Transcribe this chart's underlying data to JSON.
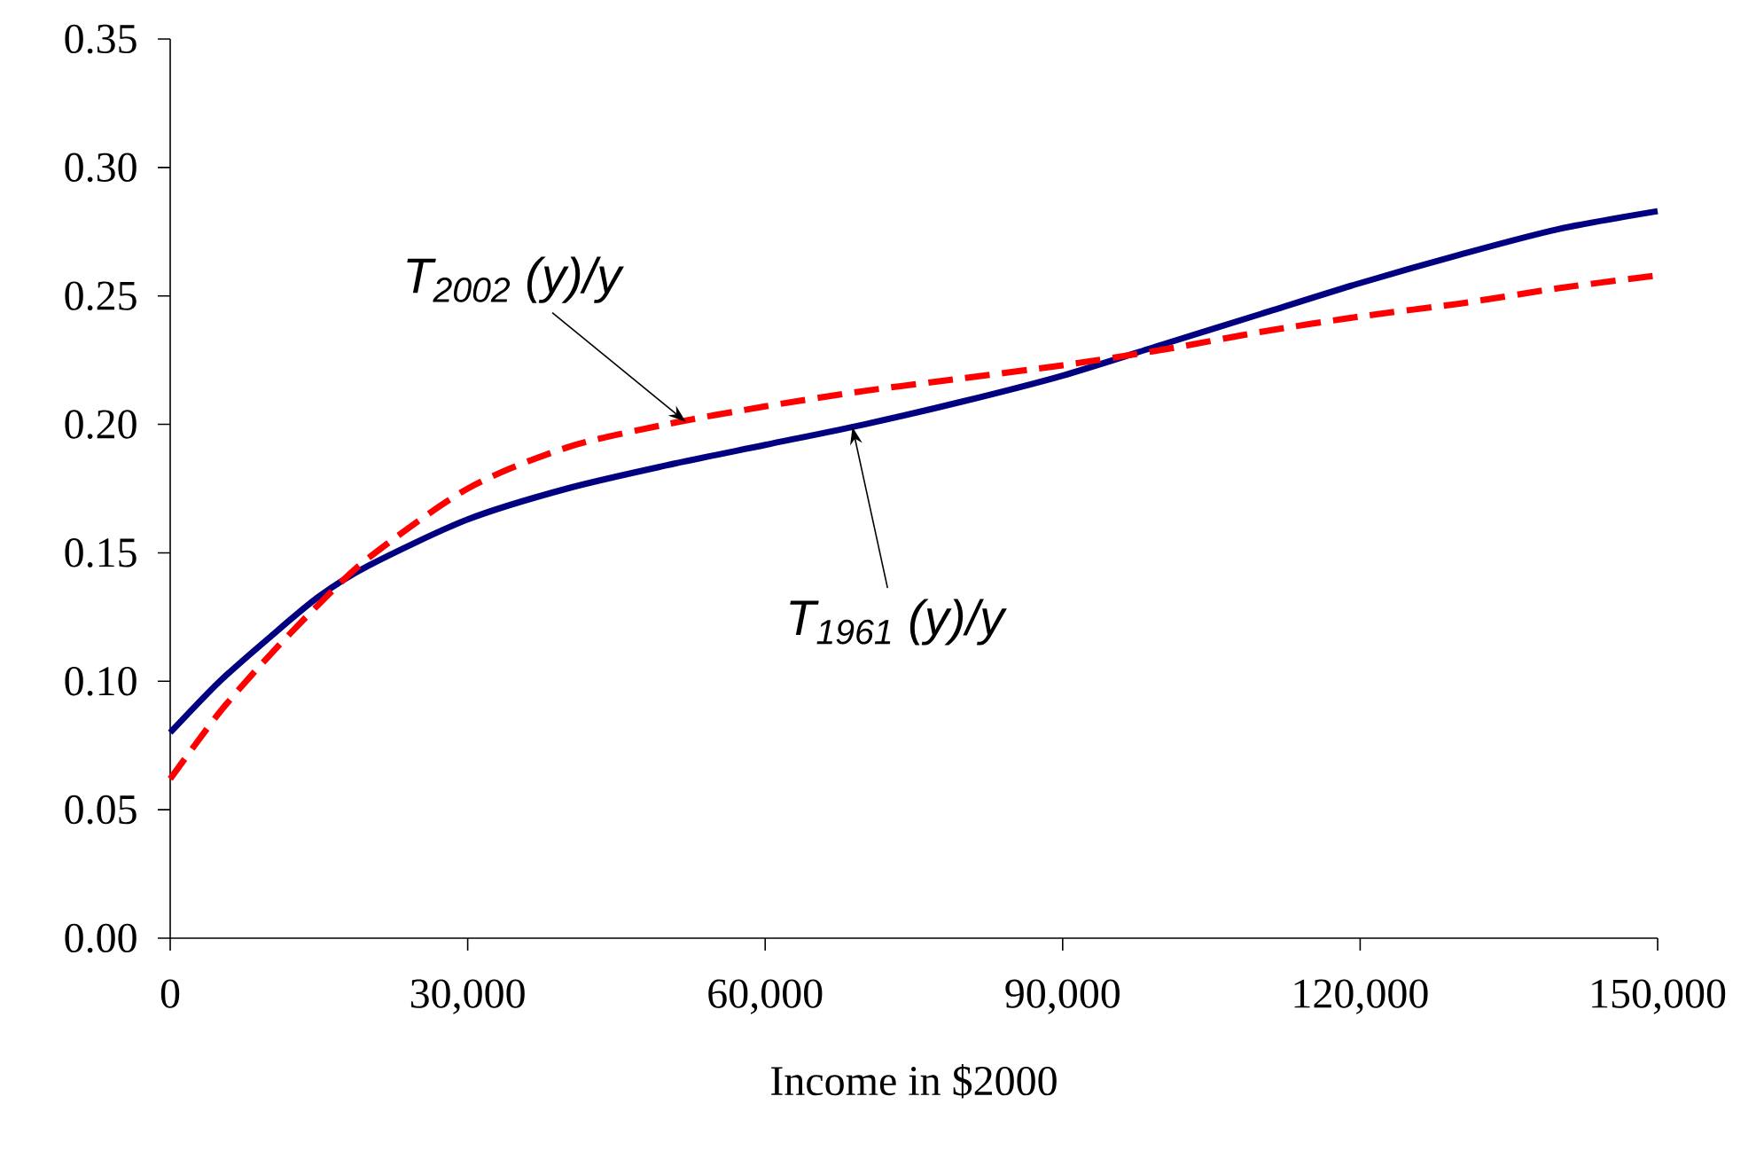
{
  "chart_data": {
    "type": "line",
    "xlabel": "Income in $2000",
    "x": [
      0,
      5000,
      10000,
      15000,
      20000,
      30000,
      40000,
      50000,
      60000,
      70000,
      80000,
      90000,
      100000,
      110000,
      120000,
      130000,
      140000,
      150000
    ],
    "series": [
      {
        "color": "#000080",
        "line_style": "solid",
        "values": [
          0.08,
          0.1,
          0.117,
          0.133,
          0.145,
          0.163,
          0.175,
          0.184,
          0.192,
          0.2,
          0.209,
          0.219,
          0.231,
          0.243,
          0.255,
          0.266,
          0.276,
          0.283
        ]
      },
      {
        "color": "#ff0000",
        "line_style": "dashed",
        "values": [
          0.062,
          0.088,
          0.11,
          0.13,
          0.148,
          0.175,
          0.191,
          0.2,
          0.207,
          0.213,
          0.218,
          0.223,
          0.229,
          0.236,
          0.242,
          0.247,
          0.253,
          0.258
        ]
      }
    ],
    "xlim": [
      0,
      150000
    ],
    "ylim": [
      0,
      0.35
    ],
    "xticks": [
      0,
      {
        "value": 30000,
        "label": "30,000"
      },
      {
        "value": 60000,
        "label": "60,000"
      },
      {
        "value": 90000,
        "label": "90,000"
      },
      {
        "value": 120000,
        "label": "120,000"
      },
      {
        "value": 150000,
        "label": "150,000"
      }
    ],
    "yticks": [
      {
        "value": 0,
        "label": "0.00"
      },
      {
        "value": 0.05,
        "label": "0.05"
      },
      {
        "value": 0.1,
        "label": "0.10"
      },
      {
        "value": 0.15,
        "label": "0.15"
      },
      {
        "value": 0.2,
        "label": "0.20"
      },
      {
        "value": 0.25,
        "label": "0.25"
      },
      {
        "value": 0.3,
        "label": "0.30"
      },
      {
        "value": 0.35,
        "label": "0.35"
      }
    ],
    "annotations": [
      {
        "text": "T$_{2002}$ (y)/y",
        "x": 52000,
        "y": 0.201
      },
      {
        "text": "T$_{1961}$ (y)/y",
        "x": 68800,
        "y": 0.199
      }
    ]
  }
}
